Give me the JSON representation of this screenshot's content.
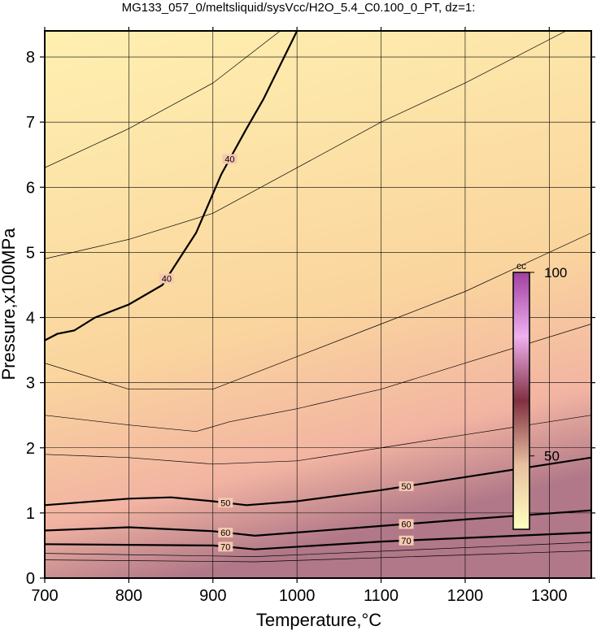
{
  "chart_data": {
    "type": "contour",
    "title": "MG133_057_0/meltsliquid/sysVcc/H2O_5.4_C0.100_0_PT, dz=1:",
    "x_label": "Temperature,°C",
    "y_label": "Pressure,x100MPa",
    "xlim": [
      700,
      1350
    ],
    "ylim": [
      0,
      8.4
    ],
    "xticks": [
      700,
      800,
      900,
      1000,
      1100,
      1200,
      1300
    ],
    "yticks": [
      0,
      1,
      2,
      3,
      4,
      5,
      6,
      7,
      8
    ],
    "grid": true,
    "colorbar": {
      "label": "cc",
      "clim": [
        30,
        100
      ],
      "ticks": [
        50,
        100
      ],
      "colors": [
        "#ffffc0",
        "#e8c0a0",
        "#803040",
        "#f0b0f0",
        "#a040a0"
      ]
    },
    "contours": [
      {
        "level": 36,
        "x": [
          700,
          800,
          900,
          980
        ],
        "y": [
          6.3,
          6.9,
          7.6,
          8.4
        ]
      },
      {
        "level": 38,
        "x": [
          700,
          800,
          900,
          1000,
          1100,
          1200,
          1320
        ],
        "y": [
          4.9,
          5.2,
          5.6,
          6.3,
          7.0,
          7.6,
          8.4
        ]
      },
      {
        "level": 40,
        "labeled": true,
        "x": [
          700,
          715,
          735,
          760,
          800,
          840,
          855,
          880,
          910,
          940,
          960,
          1000
        ],
        "y": [
          3.65,
          3.75,
          3.8,
          4.0,
          4.2,
          4.5,
          4.8,
          5.3,
          6.2,
          6.9,
          7.35,
          8.4
        ],
        "label_at": [
          845,
          920
        ]
      },
      {
        "level": 43,
        "x": [
          700,
          800,
          900,
          1000,
          1100,
          1200,
          1350
        ],
        "y": [
          3.3,
          2.9,
          2.9,
          3.4,
          3.9,
          4.4,
          5.3
        ]
      },
      {
        "level": 45,
        "x": [
          700,
          800,
          880,
          920,
          1000,
          1100,
          1200,
          1350
        ],
        "y": [
          2.5,
          2.35,
          2.25,
          2.4,
          2.6,
          2.9,
          3.3,
          3.9
        ]
      },
      {
        "level": 47,
        "x": [
          700,
          800,
          900,
          1000,
          1200,
          1350
        ],
        "y": [
          1.9,
          1.85,
          1.75,
          1.8,
          2.2,
          2.5
        ]
      },
      {
        "level": 50,
        "labeled": true,
        "x": [
          700,
          750,
          800,
          850,
          900,
          940,
          1000,
          1100,
          1200,
          1300,
          1350
        ],
        "y": [
          1.12,
          1.17,
          1.22,
          1.24,
          1.18,
          1.12,
          1.18,
          1.35,
          1.55,
          1.75,
          1.85
        ],
        "label_at": [
          915,
          1130
        ]
      },
      {
        "level": 60,
        "labeled": true,
        "x": [
          700,
          800,
          900,
          950,
          1100,
          1200,
          1350
        ],
        "y": [
          0.73,
          0.78,
          0.72,
          0.65,
          0.8,
          0.9,
          1.04
        ],
        "label_at": [
          915,
          1130
        ]
      },
      {
        "level": 70,
        "labeled": true,
        "x": [
          700,
          900,
          950,
          1100,
          1350
        ],
        "y": [
          0.52,
          0.5,
          0.44,
          0.56,
          0.7
        ],
        "label_at": [
          915,
          1130
        ]
      },
      {
        "level": 80,
        "x": [
          700,
          950,
          1350
        ],
        "y": [
          0.38,
          0.33,
          0.55
        ]
      },
      {
        "level": 90,
        "x": [
          700,
          950,
          1350
        ],
        "y": [
          0.28,
          0.25,
          0.42
        ]
      }
    ]
  }
}
